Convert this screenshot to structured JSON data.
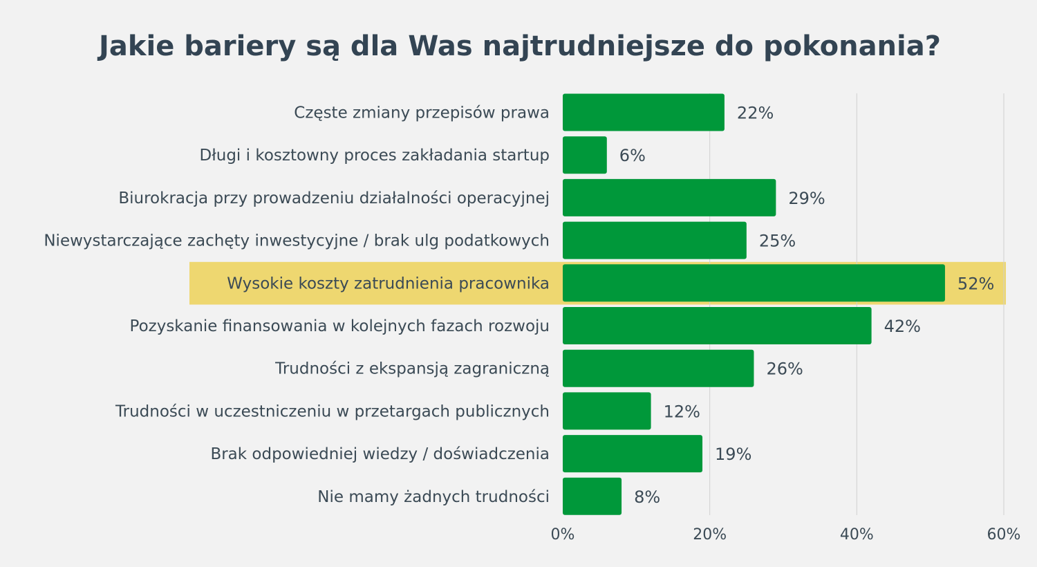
{
  "chart_data": {
    "type": "bar",
    "orientation": "horizontal",
    "title": "Jakie bariery są dla Was najtrudniejsze do pokonania?",
    "categories": [
      "Częste zmiany przepisów prawa",
      "Długi i kosztowny proces zakładania startup",
      "Biurokracja przy prowadzeniu działalności operacyjnej",
      "Niewystarczające zachęty inwestycyjne / brak ulg podatkowych",
      "Wysokie koszty zatrudnienia pracownika",
      "Pozyskanie finansowania w kolejnych fazach rozwoju",
      "Trudności z ekspansją zagraniczną",
      "Trudności w uczestniczeniu w przetargach publicznych",
      "Brak odpowiedniej wiedzy / doświadczenia",
      "Nie mamy żadnych trudności"
    ],
    "values": [
      22,
      6,
      29,
      25,
      52,
      42,
      26,
      12,
      19,
      8
    ],
    "value_labels": [
      "22%",
      "6%",
      "29%",
      "25%",
      "52%",
      "42%",
      "26%",
      "12%",
      "19%",
      "8%"
    ],
    "xlim": [
      0,
      60
    ],
    "x_ticks": [
      0,
      20,
      40,
      60
    ],
    "x_tick_labels": [
      "0%",
      "20%",
      "40%",
      "60%"
    ],
    "xlabel": "",
    "ylabel": "",
    "grid": "vertical",
    "legend": "none",
    "highlighted_category": "Wysokie koszty zatrudnienia pracownika",
    "colors": {
      "background": "#f2f2f2",
      "bar": "#00983a",
      "highlight": "#eed770",
      "text": "#3b4a55",
      "title": "#334453",
      "grid": "#d0d0d0"
    }
  }
}
